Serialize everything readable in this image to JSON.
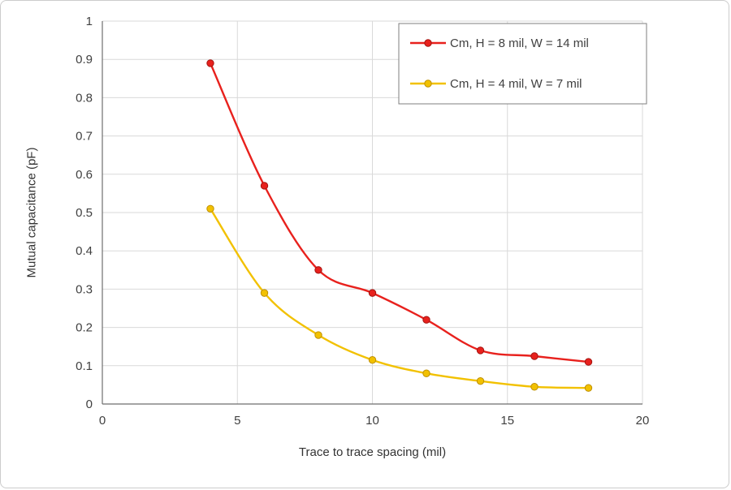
{
  "page": {
    "background": "#ffffff",
    "border_color": "#cccccc"
  },
  "chart_data": {
    "type": "line",
    "title": "",
    "xlabel": "Trace to trace spacing (mil)",
    "ylabel": "Mutual capacitance (pF)",
    "xlim": [
      0,
      20
    ],
    "ylim": [
      0,
      1
    ],
    "x_ticks": [
      0,
      5,
      10,
      15,
      20
    ],
    "y_ticks": [
      0,
      0.1,
      0.2,
      0.3,
      0.4,
      0.5,
      0.6,
      0.7,
      0.8,
      0.9,
      1
    ],
    "grid": true,
    "grid_color": "#d9d9d9",
    "axis_color": "#6e6e6e",
    "text_color": "#404040",
    "legend": {
      "position": "top-right",
      "border_color": "#7f7f7f",
      "background": "#ffffff"
    },
    "x": [
      4,
      6,
      8,
      10,
      12,
      14,
      16,
      18
    ],
    "series": [
      {
        "name": "Cm, H = 8 mil, W = 14 mil",
        "color": "#e8211d",
        "marker_border": "#a31410",
        "values": [
          0.89,
          0.57,
          0.35,
          0.29,
          0.22,
          0.14,
          0.125,
          0.11
        ]
      },
      {
        "name": "Cm, H = 4 mil, W = 7 mil",
        "color": "#f2c100",
        "marker_border": "#bf9000",
        "values": [
          0.51,
          0.29,
          0.18,
          0.115,
          0.08,
          0.06,
          0.045,
          0.042
        ]
      }
    ]
  }
}
